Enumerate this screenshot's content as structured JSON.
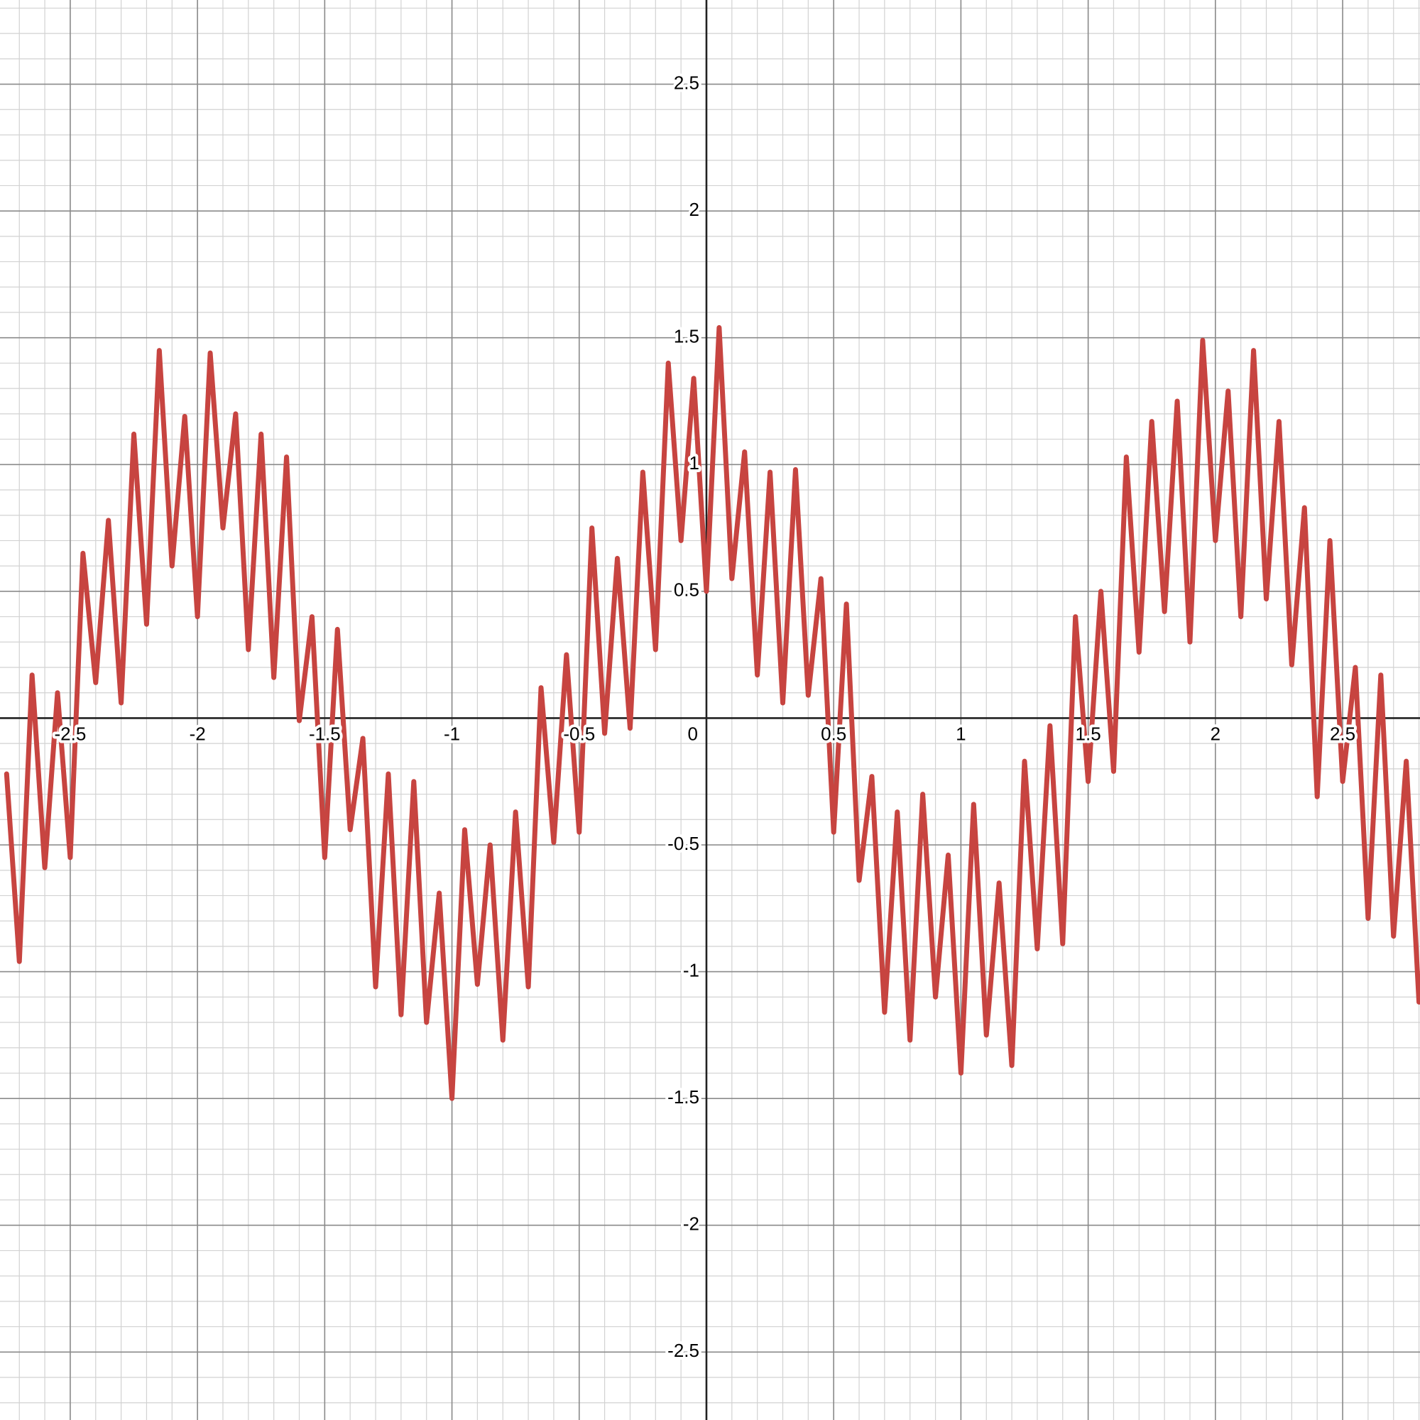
{
  "chart_data": {
    "type": "line",
    "x": [
      -2.75,
      -2.7,
      -2.65,
      -2.6,
      -2.55,
      -2.5,
      -2.45,
      -2.4,
      -2.35,
      -2.3,
      -2.25,
      -2.2,
      -2.15,
      -2.1,
      -2.05,
      -2,
      -1.95,
      -1.9,
      -1.85,
      -1.8,
      -1.75,
      -1.7,
      -1.65,
      -1.6,
      -1.55,
      -1.5,
      -1.45,
      -1.4,
      -1.35,
      -1.3,
      -1.25,
      -1.2,
      -1.15,
      -1.1,
      -1.05,
      -1,
      -0.95,
      -0.9,
      -0.85,
      -0.8,
      -0.75,
      -0.7,
      -0.65,
      -0.6,
      -0.55,
      -0.5,
      -0.45,
      -0.4,
      -0.35,
      -0.3,
      -0.25,
      -0.2,
      -0.15,
      -0.1,
      -0.05,
      0,
      0.05,
      0.1,
      0.15,
      0.2,
      0.25,
      0.3,
      0.35,
      0.4,
      0.45,
      0.5,
      0.55,
      0.6,
      0.65,
      0.7,
      0.75,
      0.8,
      0.85,
      0.9,
      0.95,
      1,
      1.05,
      1.1,
      1.15,
      1.2,
      1.25,
      1.3,
      1.35,
      1.4,
      1.45,
      1.5,
      1.55,
      1.6,
      1.65,
      1.7,
      1.75,
      1.8,
      1.85,
      1.9,
      1.95,
      2,
      2.05,
      2.1,
      2.15,
      2.2,
      2.25,
      2.3,
      2.35,
      2.4,
      2.45,
      2.5,
      2.55,
      2.6,
      2.65,
      2.7,
      2.75,
      2.8
    ],
    "values": [
      -0.22,
      -0.96,
      0.17,
      -0.59,
      0.1,
      -0.55,
      0.65,
      0.14,
      0.78,
      0.06,
      1.12,
      0.37,
      1.45,
      0.6,
      1.19,
      0.4,
      1.44,
      0.75,
      1.2,
      0.27,
      1.12,
      0.16,
      1.03,
      -0.01,
      0.4,
      -0.55,
      0.35,
      -0.44,
      -0.08,
      -1.06,
      -0.22,
      -1.17,
      -0.25,
      -1.2,
      -0.69,
      -1.5,
      -0.44,
      -1.05,
      -0.5,
      -1.27,
      -0.37,
      -1.06,
      0.12,
      -0.49,
      0.25,
      -0.45,
      0.75,
      -0.06,
      0.63,
      -0.04,
      0.97,
      0.27,
      1.4,
      0.7,
      1.34,
      0.5,
      1.54,
      0.55,
      1.05,
      0.17,
      0.97,
      0.06,
      0.98,
      0.09,
      0.55,
      -0.45,
      0.45,
      -0.64,
      -0.23,
      -1.16,
      -0.37,
      -1.27,
      -0.3,
      -1.1,
      -0.54,
      -1.4,
      -0.34,
      -1.25,
      -0.65,
      -1.37,
      -0.17,
      -0.91,
      -0.03,
      -0.89,
      0.4,
      -0.25,
      0.5,
      -0.21,
      1.03,
      0.26,
      1.17,
      0.42,
      1.25,
      0.3,
      1.49,
      0.7,
      1.29,
      0.4,
      1.45,
      0.47,
      1.17,
      0.21,
      0.83,
      -0.31,
      0.7,
      -0.25,
      0.2,
      -0.79,
      0.17,
      -0.86,
      -0.17,
      -1.12
    ],
    "color": "#c74440",
    "xlim": [
      -2.776,
      2.804
    ],
    "ylim": [
      -2.768,
      2.832
    ],
    "xticks": [
      -2.5,
      -2,
      -1.5,
      -1,
      -0.5,
      0,
      0.5,
      1,
      1.5,
      2,
      2.5
    ],
    "yticks": [
      -2.5,
      -2,
      -1.5,
      -1,
      -0.5,
      0.5,
      1,
      1.5,
      2,
      2.5
    ],
    "grid": true
  }
}
